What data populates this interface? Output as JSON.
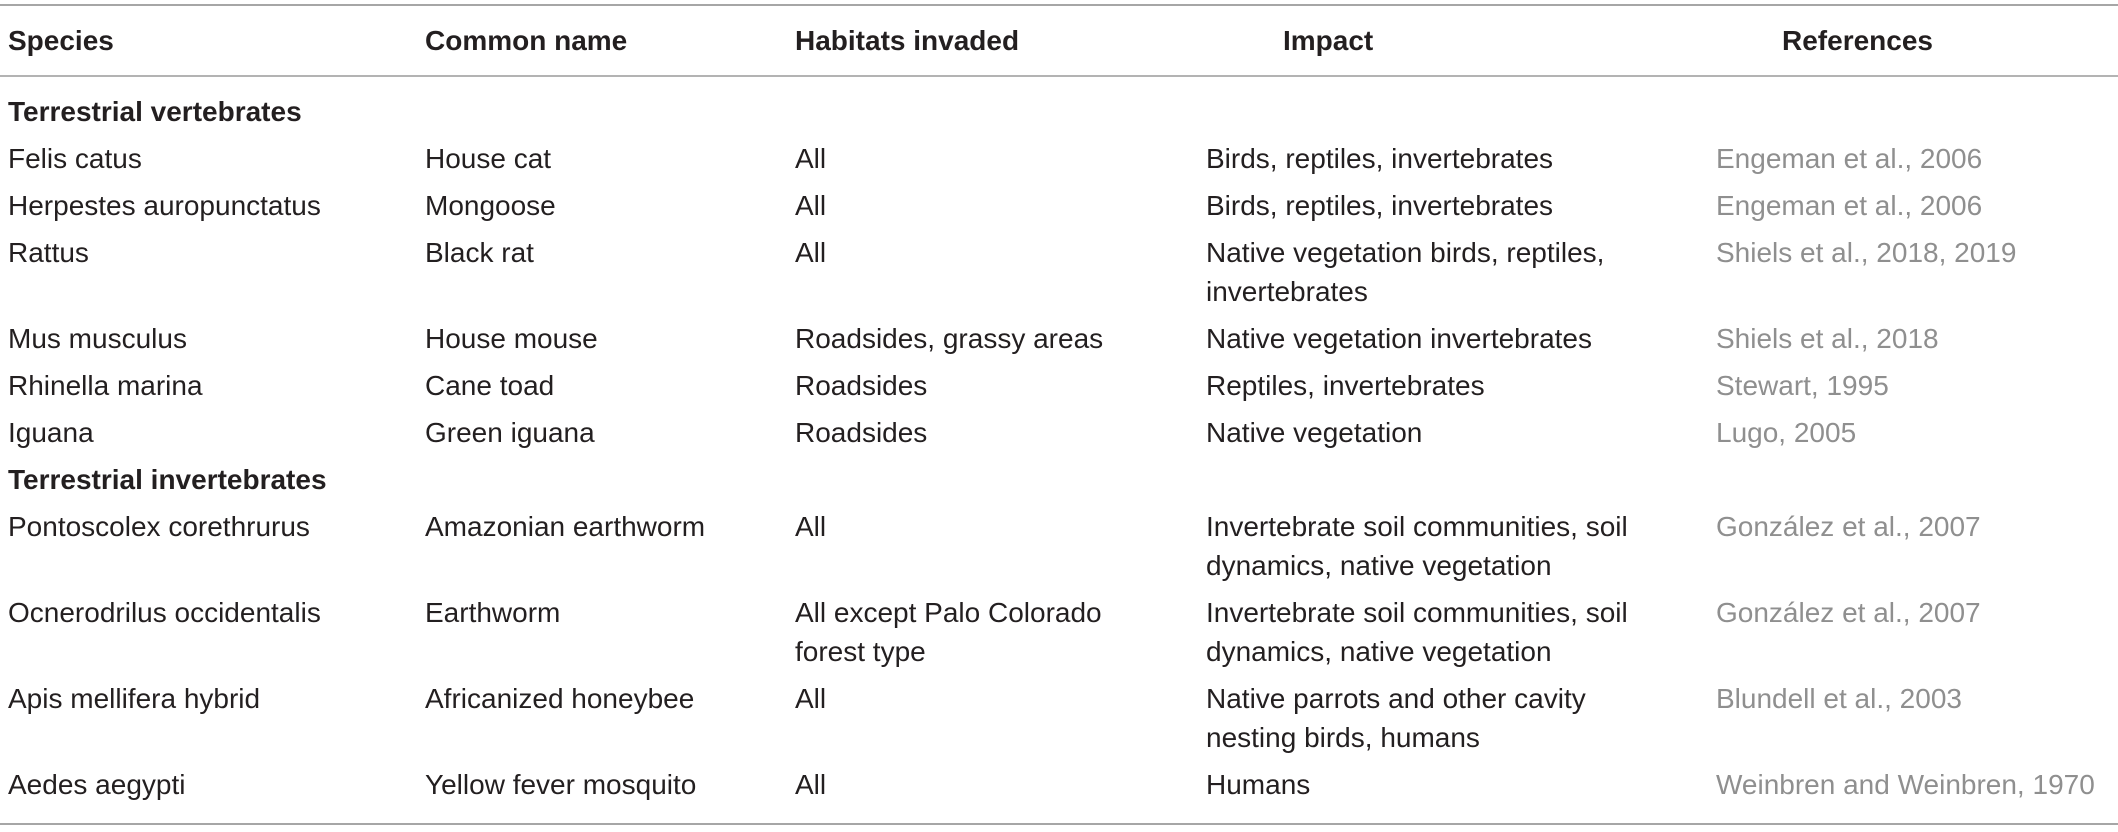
{
  "headers": {
    "species": "Species",
    "common_name": "Common name",
    "habitats": "Habitats invaded",
    "impact": "Impact",
    "references": "References"
  },
  "sections": [
    {
      "title": "Terrestrial vertebrates",
      "rows": [
        {
          "species": "Felis catus",
          "common_name": "House cat",
          "habitats": [
            "All"
          ],
          "impact": [
            "Birds, reptiles, invertebrates"
          ],
          "reference": "Engeman et al., 2006"
        },
        {
          "species": "Herpestes auropunctatus",
          "common_name": "Mongoose",
          "habitats": [
            "All"
          ],
          "impact": [
            "Birds, reptiles, invertebrates"
          ],
          "reference": "Engeman et al., 2006"
        },
        {
          "species": "Rattus",
          "common_name": "Black rat",
          "habitats": [
            "All"
          ],
          "impact": [
            "Native vegetation birds, reptiles,",
            "invertebrates"
          ],
          "reference": "Shiels et al., 2018, 2019"
        },
        {
          "species": "Mus musculus",
          "common_name": "House mouse",
          "habitats": [
            "Roadsides, grassy areas"
          ],
          "impact": [
            "Native vegetation invertebrates"
          ],
          "reference": "Shiels et al., 2018"
        },
        {
          "species": "Rhinella marina",
          "common_name": "Cane toad",
          "habitats": [
            "Roadsides"
          ],
          "impact": [
            "Reptiles, invertebrates"
          ],
          "reference": "Stewart, 1995"
        },
        {
          "species": "Iguana",
          "common_name": "Green iguana",
          "habitats": [
            "Roadsides"
          ],
          "impact": [
            "Native vegetation"
          ],
          "reference": "Lugo, 2005"
        }
      ]
    },
    {
      "title": "Terrestrial invertebrates",
      "rows": [
        {
          "species": "Pontoscolex corethrurus",
          "common_name": "Amazonian earthworm",
          "habitats": [
            "All"
          ],
          "impact": [
            "Invertebrate soil communities, soil",
            "dynamics, native vegetation"
          ],
          "reference": "González et al., 2007"
        },
        {
          "species": "Ocnerodrilus occidentalis",
          "common_name": "Earthworm",
          "habitats": [
            "All except Palo Colorado",
            "forest type"
          ],
          "impact": [
            "Invertebrate soil communities, soil",
            "dynamics, native vegetation"
          ],
          "reference": "González et al., 2007"
        },
        {
          "species": "Apis mellifera hybrid",
          "common_name": "Africanized honeybee",
          "habitats": [
            "All"
          ],
          "impact": [
            "Native parrots and other cavity",
            "nesting birds, humans"
          ],
          "reference": "Blundell et al., 2003"
        },
        {
          "species": "Aedes aegypti",
          "common_name": "Yellow fever mosquito",
          "habitats": [
            "All"
          ],
          "impact": [
            "Humans"
          ],
          "reference": "Weinbren and Weinbren, 1970"
        }
      ]
    }
  ]
}
